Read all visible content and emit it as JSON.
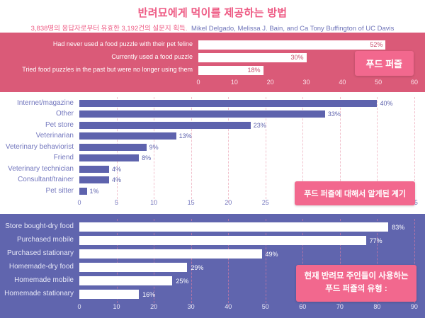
{
  "page": {
    "title": "반려묘에게 먹이를 제공하는 방법",
    "subtitle_left": "3,838명의 응답자로부터 유효한 3,192건의 설문지 획득.",
    "subtitle_right": "Mikel Delgado, Melissa J. Bain, and Ca Tony Buffington of UC Davis"
  },
  "colors": {
    "pink_band": "#DA5A78",
    "purple_band": "#6065AE",
    "bar_purple": "#5E63AD",
    "badge_pink": "#F2688E",
    "title_pink": "#EE5B84",
    "author_purple": "#6F74B9"
  },
  "chart_data": [
    {
      "type": "bar",
      "orientation": "horizontal",
      "title": "푸드 퍼즐",
      "categories": [
        "Had never used a food puzzle with their pet feline",
        "Currently used a food puzzle",
        "Tried food puzzles in the past but were no longer using them"
      ],
      "values": [
        52,
        30,
        18
      ],
      "value_labels": [
        "52%",
        "30%",
        "18%"
      ],
      "xlim": [
        0,
        60
      ],
      "ticks": [
        0,
        10,
        20,
        30,
        40,
        50,
        60
      ],
      "grid": false,
      "bar_color": "#FFFFFF",
      "background": "#DA5A78"
    },
    {
      "type": "bar",
      "orientation": "horizontal",
      "title": "푸드 퍼즐에 대해서 알게된 계기",
      "categories": [
        "Internet/magazine",
        "Other",
        "Pet store",
        "Veterinarian",
        "Veterinary behaviorist",
        "Friend",
        "Veterinary technician",
        "Consultant/trainer",
        "Pet sitter"
      ],
      "values": [
        40,
        33,
        23,
        13,
        9,
        8,
        4,
        4,
        1
      ],
      "value_labels": [
        "40%",
        "33%",
        "23%",
        "13%",
        "9%",
        "8%",
        "4%",
        "4%",
        "1%"
      ],
      "xlim": [
        0,
        45
      ],
      "ticks": [
        0,
        5,
        10,
        15,
        20,
        25,
        30,
        35,
        40,
        45
      ],
      "grid": true,
      "bar_color": "#5E63AD",
      "background": "#FFFFFF"
    },
    {
      "type": "bar",
      "orientation": "horizontal",
      "title": "현재 반려묘 주인들이 사용하는 푸드 퍼즐의 유형 :",
      "categories": [
        "Store bought-dry food",
        "Purchased mobile",
        "Purchased stationary",
        "Homemade-dry food",
        "Homemade mobile",
        "Homemade stationary"
      ],
      "values": [
        83,
        77,
        49,
        29,
        25,
        16
      ],
      "value_labels": [
        "83%",
        "77%",
        "49%",
        "29%",
        "25%",
        "16%"
      ],
      "xlim": [
        0,
        90
      ],
      "ticks": [
        0,
        10,
        20,
        30,
        40,
        50,
        60,
        70,
        80,
        90
      ],
      "grid": true,
      "bar_color": "#FFFFFF",
      "background": "#6065AE"
    }
  ]
}
